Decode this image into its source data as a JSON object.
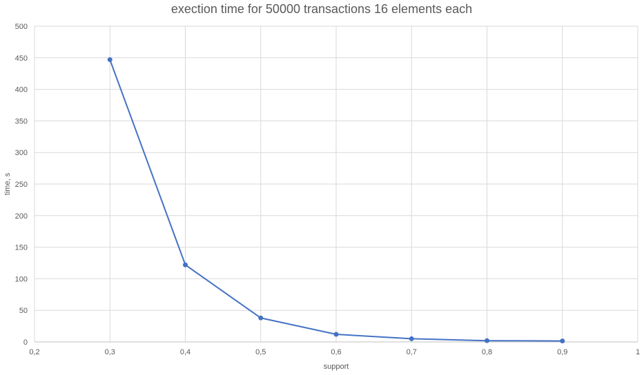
{
  "chart_data": {
    "type": "line",
    "title": "exection time for 50000 transactions 16 elements each",
    "xlabel": "support",
    "ylabel": "time, s",
    "xlim": [
      0.2,
      1
    ],
    "ylim": [
      0,
      500
    ],
    "x_ticks": [
      "0,2",
      "0,3",
      "0,4",
      "0,5",
      "0,6",
      "0,7",
      "0,8",
      "0,9",
      "1"
    ],
    "y_ticks": [
      "0",
      "50",
      "100",
      "150",
      "200",
      "250",
      "300",
      "350",
      "400",
      "450",
      "500"
    ],
    "grid": true,
    "legend": "none",
    "series": [
      {
        "color": "#4472c4",
        "x": [
          0.3,
          0.4,
          0.5,
          0.6,
          0.7,
          0.8,
          0.9
        ],
        "values": [
          447,
          122,
          38,
          12,
          5,
          2,
          1.5
        ]
      }
    ]
  }
}
